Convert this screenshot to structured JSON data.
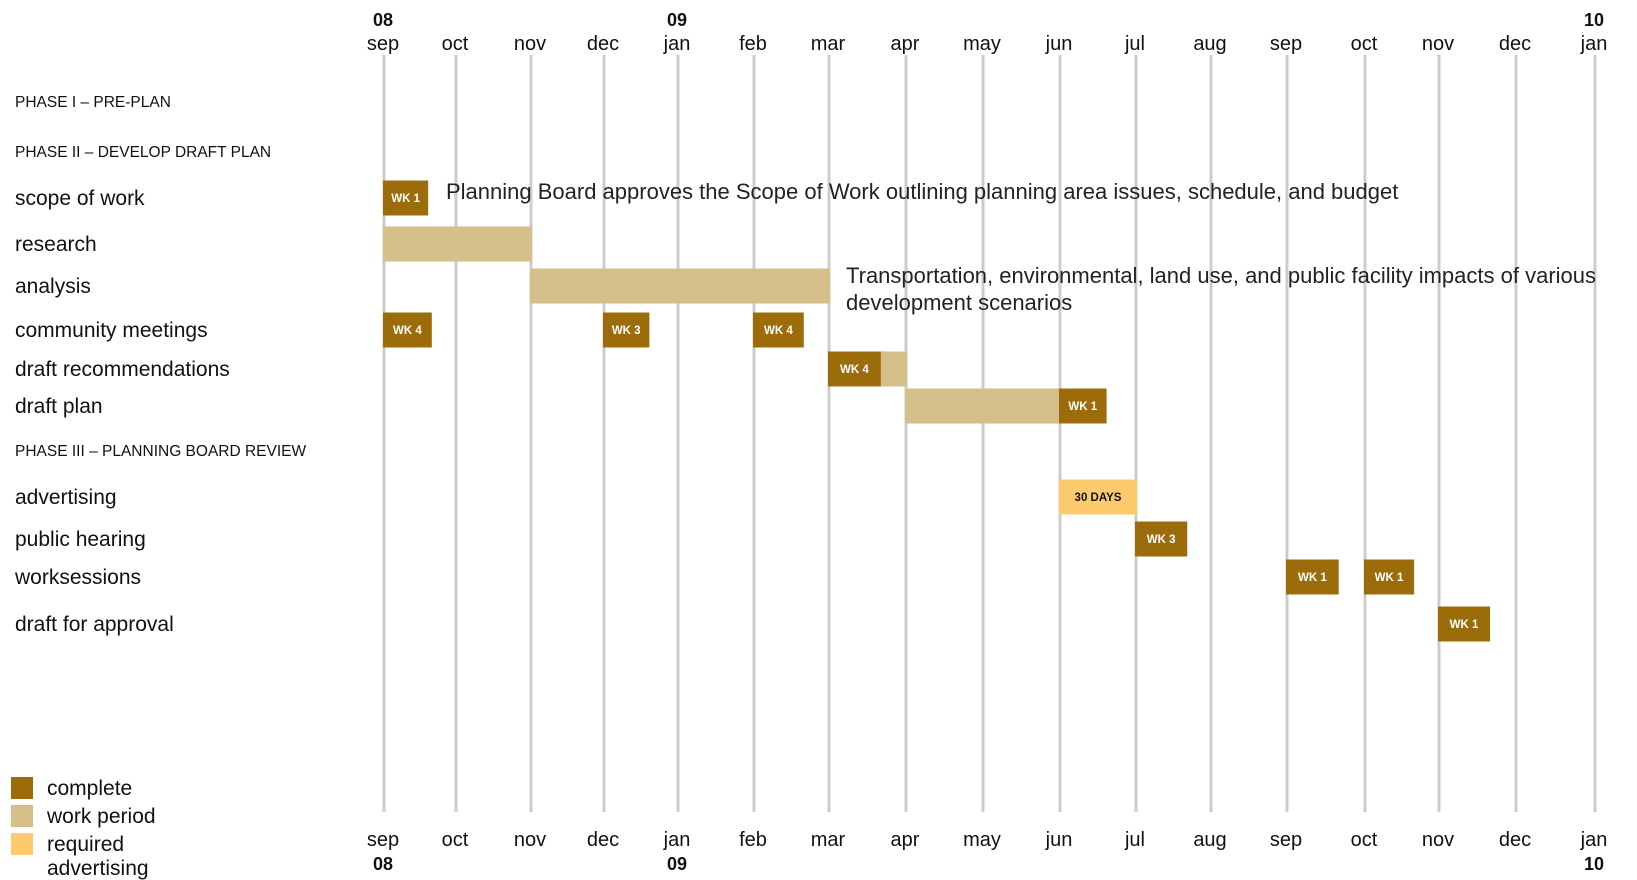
{
  "colors": {
    "complete": "#9c6c0a",
    "work_period": "#d4bf8a",
    "required_advertising": "#fdcb6e",
    "gridline": "#cccccc"
  },
  "chart_data": {
    "type": "gantt",
    "years": [
      {
        "label": "08",
        "month_index": 0
      },
      {
        "label": "09",
        "month_index": 4
      },
      {
        "label": "10",
        "month_index": 16
      }
    ],
    "months": [
      "sep",
      "oct",
      "nov",
      "dec",
      "jan",
      "feb",
      "mar",
      "apr",
      "may",
      "jun",
      "jul",
      "aug",
      "sep",
      "oct",
      "nov",
      "dec",
      "jan"
    ],
    "rows": [
      {
        "label": "PHASE I – PRE-PLAN",
        "kind": "phase"
      },
      {
        "label": "PHASE II – DEVELOP DRAFT PLAN",
        "kind": "phase"
      },
      {
        "label": "scope of work",
        "kind": "task"
      },
      {
        "label": "research",
        "kind": "task"
      },
      {
        "label": "analysis",
        "kind": "task"
      },
      {
        "label": "community meetings",
        "kind": "task"
      },
      {
        "label": "draft recommendations",
        "kind": "task"
      },
      {
        "label": "draft plan",
        "kind": "task"
      },
      {
        "label": "PHASE III – PLANNING BOARD REVIEW",
        "kind": "phase"
      },
      {
        "label": "advertising",
        "kind": "task"
      },
      {
        "label": "public hearing",
        "kind": "task"
      },
      {
        "label": "worksessions",
        "kind": "task"
      },
      {
        "label": "draft for approval",
        "kind": "task"
      }
    ],
    "bars": [
      {
        "row": 3,
        "status": "work_period",
        "start": 0,
        "end": 2
      },
      {
        "row": 4,
        "status": "work_period",
        "start": 2,
        "end": 6
      },
      {
        "row": 6,
        "status": "work_period",
        "start": 6,
        "end": 7
      },
      {
        "row": 7,
        "status": "work_period",
        "start": 7,
        "end": 9
      },
      {
        "row": 2,
        "status": "complete",
        "start": 0,
        "end": 0.6,
        "label": "WK 1"
      },
      {
        "row": 5,
        "status": "complete",
        "start": 0,
        "end": 0.65,
        "label": "WK 4"
      },
      {
        "row": 5,
        "status": "complete",
        "start": 3,
        "end": 3.6,
        "label": "WK 3"
      },
      {
        "row": 5,
        "status": "complete",
        "start": 5,
        "end": 5.65,
        "label": "WK 4"
      },
      {
        "row": 6,
        "status": "complete",
        "start": 6,
        "end": 6.66,
        "label": "WK 4"
      },
      {
        "row": 7,
        "status": "complete",
        "start": 9,
        "end": 9.6,
        "label": "WK 1"
      },
      {
        "row": 9,
        "status": "required_advertising",
        "start": 9,
        "end": 10,
        "label": "30 DAYS"
      },
      {
        "row": 10,
        "status": "complete",
        "start": 10,
        "end": 10.67,
        "label": "WK 3"
      },
      {
        "row": 11,
        "status": "complete",
        "start": 12,
        "end": 12.65,
        "label": "WK 1"
      },
      {
        "row": 11,
        "status": "complete",
        "start": 13,
        "end": 13.65,
        "label": "WK 1"
      },
      {
        "row": 12,
        "status": "complete",
        "start": 14,
        "end": 14.65,
        "label": "WK 1"
      }
    ],
    "annotations": [
      {
        "row": 2,
        "lines": [
          "Planning Board approves the Scope of Work outlining planning area issues, schedule, and budget"
        ]
      },
      {
        "row": 4,
        "lines": [
          "Transportation, environmental, land use, and public facility impacts of various",
          "development scenarios"
        ]
      }
    ],
    "legend": [
      {
        "key": "complete",
        "lines": [
          "complete"
        ]
      },
      {
        "key": "work_period",
        "lines": [
          "work period"
        ]
      },
      {
        "key": "required_advertising",
        "lines": [
          "required",
          "advertising"
        ]
      }
    ]
  }
}
